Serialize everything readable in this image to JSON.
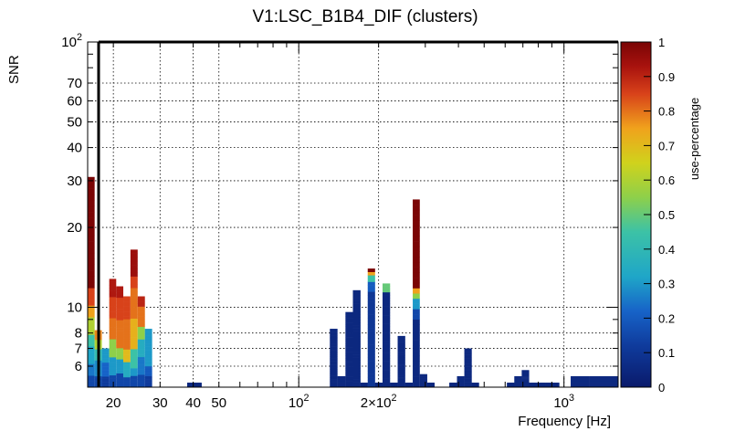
{
  "chart_data": {
    "type": "heatmap",
    "title": "V1:LSC_B1B4_DIF (clusters)",
    "xlabel": "Frequency [Hz]",
    "ylabel": "SNR",
    "zlabel": "use-percentage",
    "xscale": "log",
    "yscale": "log",
    "xlim": [
      16,
      1600
    ],
    "ylim": [
      5,
      100
    ],
    "zlim": [
      0,
      1
    ],
    "grid": true,
    "x_tick_labels": [
      {
        "value": 20,
        "label": "20"
      },
      {
        "value": 30,
        "label": "30"
      },
      {
        "value": 40,
        "label": "40"
      },
      {
        "value": 50,
        "label": "50"
      },
      {
        "value": 100,
        "label": "10",
        "exp": "2"
      },
      {
        "value": 200,
        "label": "2×10",
        "exp": "2"
      },
      {
        "value": 1000,
        "label": "10",
        "exp": "3"
      }
    ],
    "y_tick_labels": [
      {
        "value": 6,
        "label": "6"
      },
      {
        "value": 7,
        "label": "7"
      },
      {
        "value": 8,
        "label": "8"
      },
      {
        "value": 10,
        "label": "10"
      },
      {
        "value": 20,
        "label": "20"
      },
      {
        "value": 30,
        "label": "30"
      },
      {
        "value": 40,
        "label": "40"
      },
      {
        "value": 50,
        "label": "50"
      },
      {
        "value": 60,
        "label": "60"
      },
      {
        "value": 70,
        "label": "70"
      },
      {
        "value": 100,
        "label": "10",
        "exp": "2"
      }
    ],
    "z_tick_labels": [
      "0",
      "0.1",
      "0.2",
      "0.3",
      "0.4",
      "0.5",
      "0.6",
      "0.7",
      "0.8",
      "0.9",
      "1"
    ],
    "columns": [
      {
        "f0": 16.0,
        "f1": 17.0,
        "top": 31.0,
        "stops": [
          [
            0,
            0.15
          ],
          [
            5.6,
            0.25
          ],
          [
            6.2,
            0.32
          ],
          [
            7,
            0.45
          ],
          [
            8,
            0.6
          ],
          [
            9,
            0.75
          ],
          [
            10,
            0.85
          ],
          [
            12,
            1
          ],
          [
            31,
            1
          ]
        ]
      },
      {
        "f0": 17.0,
        "f1": 18.1,
        "top": 8.2,
        "stops": [
          [
            0,
            0.15
          ],
          [
            5.5,
            0.28
          ],
          [
            6.3,
            0.42
          ],
          [
            7,
            0.6
          ],
          [
            7.6,
            0.78
          ],
          [
            8.2,
            1
          ]
        ]
      },
      {
        "f0": 18.1,
        "f1": 19.3,
        "top": 7.0,
        "stops": [
          [
            0,
            0.12
          ],
          [
            5.5,
            0.22
          ],
          [
            6.2,
            0.3
          ],
          [
            7,
            0.3
          ]
        ]
      },
      {
        "f0": 19.3,
        "f1": 20.5,
        "top": 12.8,
        "stops": [
          [
            0,
            0.15
          ],
          [
            5.6,
            0.3
          ],
          [
            6.5,
            0.55
          ],
          [
            7.5,
            0.8
          ],
          [
            9,
            0.85
          ],
          [
            11,
            0.92
          ],
          [
            12.8,
            1
          ]
        ]
      },
      {
        "f0": 20.5,
        "f1": 21.8,
        "top": 12.0,
        "stops": [
          [
            0,
            0.15
          ],
          [
            5.6,
            0.3
          ],
          [
            6.3,
            0.55
          ],
          [
            7,
            0.8
          ],
          [
            9,
            0.85
          ],
          [
            11,
            0.92
          ],
          [
            12,
            1
          ]
        ]
      },
      {
        "f0": 21.8,
        "f1": 23.2,
        "top": 11.0,
        "stops": [
          [
            0,
            0.15
          ],
          [
            5.5,
            0.35
          ],
          [
            6.2,
            0.7
          ],
          [
            7,
            0.8
          ],
          [
            9,
            0.85
          ],
          [
            11,
            0.9
          ]
        ]
      },
      {
        "f0": 23.2,
        "f1": 24.7,
        "top": 16.5,
        "stops": [
          [
            0,
            0.15
          ],
          [
            5.5,
            0.3
          ],
          [
            6,
            0.45
          ],
          [
            7,
            0.72
          ],
          [
            9,
            0.8
          ],
          [
            12,
            0.85
          ],
          [
            13,
            0.95
          ],
          [
            16.5,
            1
          ]
        ]
      },
      {
        "f0": 24.7,
        "f1": 26.3,
        "top": 11.0,
        "stops": [
          [
            0,
            0.15
          ],
          [
            5.6,
            0.25
          ],
          [
            6.5,
            0.35
          ],
          [
            7.5,
            0.55
          ],
          [
            8.5,
            0.8
          ],
          [
            10,
            0.9
          ],
          [
            11,
            1
          ]
        ]
      },
      {
        "f0": 26.3,
        "f1": 28.0,
        "top": 8.3,
        "stops": [
          [
            0,
            0.12
          ],
          [
            5.5,
            0.2
          ],
          [
            6,
            0.3
          ],
          [
            8.3,
            0.3
          ]
        ]
      },
      {
        "f0": 38.0,
        "f1": 43.0,
        "top": 5.2,
        "stops": [
          [
            0,
            0.05
          ]
        ]
      },
      {
        "f0": 131,
        "f1": 140,
        "top": 8.3,
        "stops": [
          [
            0,
            0.05
          ]
        ]
      },
      {
        "f0": 140,
        "f1": 150,
        "top": 5.5,
        "stops": [
          [
            0,
            0.05
          ]
        ]
      },
      {
        "f0": 150,
        "f1": 160,
        "top": 9.6,
        "stops": [
          [
            0,
            0.05
          ]
        ]
      },
      {
        "f0": 160,
        "f1": 171,
        "top": 11.6,
        "stops": [
          [
            0,
            0.05
          ]
        ]
      },
      {
        "f0": 171,
        "f1": 182,
        "top": 5.2,
        "stops": [
          [
            0,
            0.05
          ]
        ]
      },
      {
        "f0": 182,
        "f1": 194,
        "top": 14.0,
        "stops": [
          [
            0,
            0.1
          ],
          [
            11.5,
            0.2
          ],
          [
            12.5,
            0.45
          ],
          [
            13.2,
            0.75
          ],
          [
            13.7,
            1
          ]
        ]
      },
      {
        "f0": 194,
        "f1": 207,
        "top": 5.2,
        "stops": [
          [
            0,
            0.05
          ]
        ]
      },
      {
        "f0": 207,
        "f1": 221,
        "top": 12.3,
        "stops": [
          [
            0,
            0.05
          ],
          [
            11.5,
            0.5
          ]
        ]
      },
      {
        "f0": 221,
        "f1": 236,
        "top": 5.2,
        "stops": [
          [
            0,
            0.05
          ]
        ]
      },
      {
        "f0": 236,
        "f1": 252,
        "top": 7.8,
        "stops": [
          [
            0,
            0.05
          ]
        ]
      },
      {
        "f0": 252,
        "f1": 269,
        "top": 5.2,
        "stops": [
          [
            0,
            0.05
          ]
        ]
      },
      {
        "f0": 269,
        "f1": 286,
        "top": 25.5,
        "stops": [
          [
            0,
            0.05
          ],
          [
            9,
            0.15
          ],
          [
            10,
            0.3
          ],
          [
            11,
            0.55
          ],
          [
            11.5,
            0.75
          ],
          [
            12,
            1
          ]
        ]
      },
      {
        "f0": 286,
        "f1": 305,
        "top": 5.6,
        "stops": [
          [
            0,
            0.05
          ]
        ]
      },
      {
        "f0": 305,
        "f1": 325,
        "top": 5.2,
        "stops": [
          [
            0,
            0.05
          ]
        ]
      },
      {
        "f0": 370,
        "f1": 395,
        "top": 5.2,
        "stops": [
          [
            0,
            0.05
          ]
        ]
      },
      {
        "f0": 395,
        "f1": 421,
        "top": 5.5,
        "stops": [
          [
            0,
            0.05
          ]
        ]
      },
      {
        "f0": 421,
        "f1": 449,
        "top": 7.0,
        "stops": [
          [
            0,
            0.05
          ]
        ]
      },
      {
        "f0": 449,
        "f1": 478,
        "top": 5.2,
        "stops": [
          [
            0,
            0.05
          ]
        ]
      },
      {
        "f0": 610,
        "f1": 650,
        "top": 5.2,
        "stops": [
          [
            0,
            0.05
          ]
        ]
      },
      {
        "f0": 650,
        "f1": 693,
        "top": 5.5,
        "stops": [
          [
            0,
            0.05
          ]
        ]
      },
      {
        "f0": 693,
        "f1": 739,
        "top": 5.8,
        "stops": [
          [
            0,
            0.05
          ]
        ]
      },
      {
        "f0": 739,
        "f1": 850,
        "top": 5.2,
        "stops": [
          [
            0,
            0.05
          ]
        ]
      },
      {
        "f0": 850,
        "f1": 960,
        "top": 5.2,
        "stops": [
          [
            0,
            0.05
          ]
        ]
      },
      {
        "f0": 1060,
        "f1": 1250,
        "top": 5.5,
        "stops": [
          [
            0,
            0.05
          ]
        ]
      },
      {
        "f0": 1250,
        "f1": 1600,
        "top": 5.5,
        "stops": [
          [
            0,
            0.05
          ]
        ]
      }
    ]
  }
}
